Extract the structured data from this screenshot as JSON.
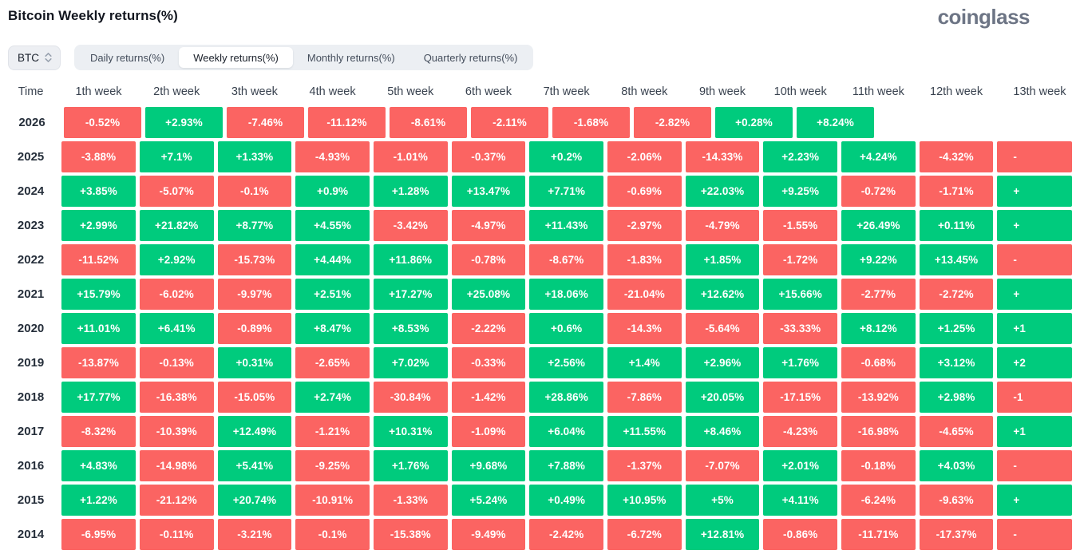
{
  "page": {
    "title": "Bitcoin Weekly returns(%)",
    "brand": "coinglass"
  },
  "controls": {
    "symbol_select": {
      "value": "BTC",
      "icon": "sort-updown-icon"
    },
    "tabs": [
      {
        "label": "Daily returns(%)",
        "active": false
      },
      {
        "label": "Weekly returns(%)",
        "active": true
      },
      {
        "label": "Monthly returns(%)",
        "active": false
      },
      {
        "label": "Quarterly returns(%)",
        "active": false
      }
    ]
  },
  "chart_data": {
    "type": "heatmap",
    "title": "Bitcoin Weekly returns(%)",
    "unit": "%",
    "time_column_header": "Time",
    "columns": [
      "1th week",
      "2th week",
      "3th week",
      "4th week",
      "5th week",
      "6th week",
      "7th week",
      "8th week",
      "9th week",
      "10th week",
      "11th week",
      "12th week",
      "13th week"
    ],
    "colors": {
      "positive": "#00cb7d",
      "negative": "#fb6462",
      "value_text": "#ffffff"
    },
    "rows": [
      {
        "year": "2026",
        "values": [
          "-0.52%",
          "+2.93%",
          "-7.46%",
          "-11.12%",
          "-8.61%",
          "-2.11%",
          "-1.68%",
          "-2.82%",
          "+0.28%",
          "+8.24%"
        ]
      },
      {
        "year": "2025",
        "values": [
          "-3.88%",
          "+7.1%",
          "+1.33%",
          "-4.93%",
          "-1.01%",
          "-0.37%",
          "+0.2%",
          "-2.06%",
          "-14.33%",
          "+2.23%",
          "+4.24%",
          "-4.32%",
          "-"
        ]
      },
      {
        "year": "2024",
        "values": [
          "+3.85%",
          "-5.07%",
          "-0.1%",
          "+0.9%",
          "+1.28%",
          "+13.47%",
          "+7.71%",
          "-0.69%",
          "+22.03%",
          "+9.25%",
          "-0.72%",
          "-1.71%",
          "+"
        ]
      },
      {
        "year": "2023",
        "values": [
          "+2.99%",
          "+21.82%",
          "+8.77%",
          "+4.55%",
          "-3.42%",
          "-4.97%",
          "+11.43%",
          "-2.97%",
          "-4.79%",
          "-1.55%",
          "+26.49%",
          "+0.11%",
          "+"
        ]
      },
      {
        "year": "2022",
        "values": [
          "-11.52%",
          "+2.92%",
          "-15.73%",
          "+4.44%",
          "+11.86%",
          "-0.78%",
          "-8.67%",
          "-1.83%",
          "+1.85%",
          "-1.72%",
          "+9.22%",
          "+13.45%",
          "-"
        ]
      },
      {
        "year": "2021",
        "values": [
          "+15.79%",
          "-6.02%",
          "-9.97%",
          "+2.51%",
          "+17.27%",
          "+25.08%",
          "+18.06%",
          "-21.04%",
          "+12.62%",
          "+15.66%",
          "-2.77%",
          "-2.72%",
          "+"
        ]
      },
      {
        "year": "2020",
        "values": [
          "+11.01%",
          "+6.41%",
          "-0.89%",
          "+8.47%",
          "+8.53%",
          "-2.22%",
          "+0.6%",
          "-14.3%",
          "-5.64%",
          "-33.33%",
          "+8.12%",
          "+1.25%",
          "+1"
        ]
      },
      {
        "year": "2019",
        "values": [
          "-13.87%",
          "-0.13%",
          "+0.31%",
          "-2.65%",
          "+7.02%",
          "-0.33%",
          "+2.56%",
          "+1.4%",
          "+2.96%",
          "+1.76%",
          "-0.68%",
          "+3.12%",
          "+2"
        ]
      },
      {
        "year": "2018",
        "values": [
          "+17.77%",
          "-16.38%",
          "-15.05%",
          "+2.74%",
          "-30.84%",
          "-1.42%",
          "+28.86%",
          "-7.86%",
          "+20.05%",
          "-17.15%",
          "-13.92%",
          "+2.98%",
          "-1"
        ]
      },
      {
        "year": "2017",
        "values": [
          "-8.32%",
          "-10.39%",
          "+12.49%",
          "-1.21%",
          "+10.31%",
          "-1.09%",
          "+6.04%",
          "+11.55%",
          "+8.46%",
          "-4.23%",
          "-16.98%",
          "-4.65%",
          "+1"
        ]
      },
      {
        "year": "2016",
        "values": [
          "+4.83%",
          "-14.98%",
          "+5.41%",
          "-9.25%",
          "+1.76%",
          "+9.68%",
          "+7.88%",
          "-1.37%",
          "-7.07%",
          "+2.01%",
          "-0.18%",
          "+4.03%",
          "-"
        ]
      },
      {
        "year": "2015",
        "values": [
          "+1.22%",
          "-21.12%",
          "+20.74%",
          "-10.91%",
          "-1.33%",
          "+5.24%",
          "+0.49%",
          "+10.95%",
          "+5%",
          "+4.11%",
          "-6.24%",
          "-9.63%",
          "+"
        ]
      },
      {
        "year": "2014",
        "values": [
          "-6.95%",
          "-0.11%",
          "-3.21%",
          "-0.1%",
          "-15.38%",
          "-9.49%",
          "-2.42%",
          "-6.72%",
          "+12.81%",
          "-0.86%",
          "-11.71%",
          "-17.37%",
          "-"
        ]
      }
    ]
  }
}
